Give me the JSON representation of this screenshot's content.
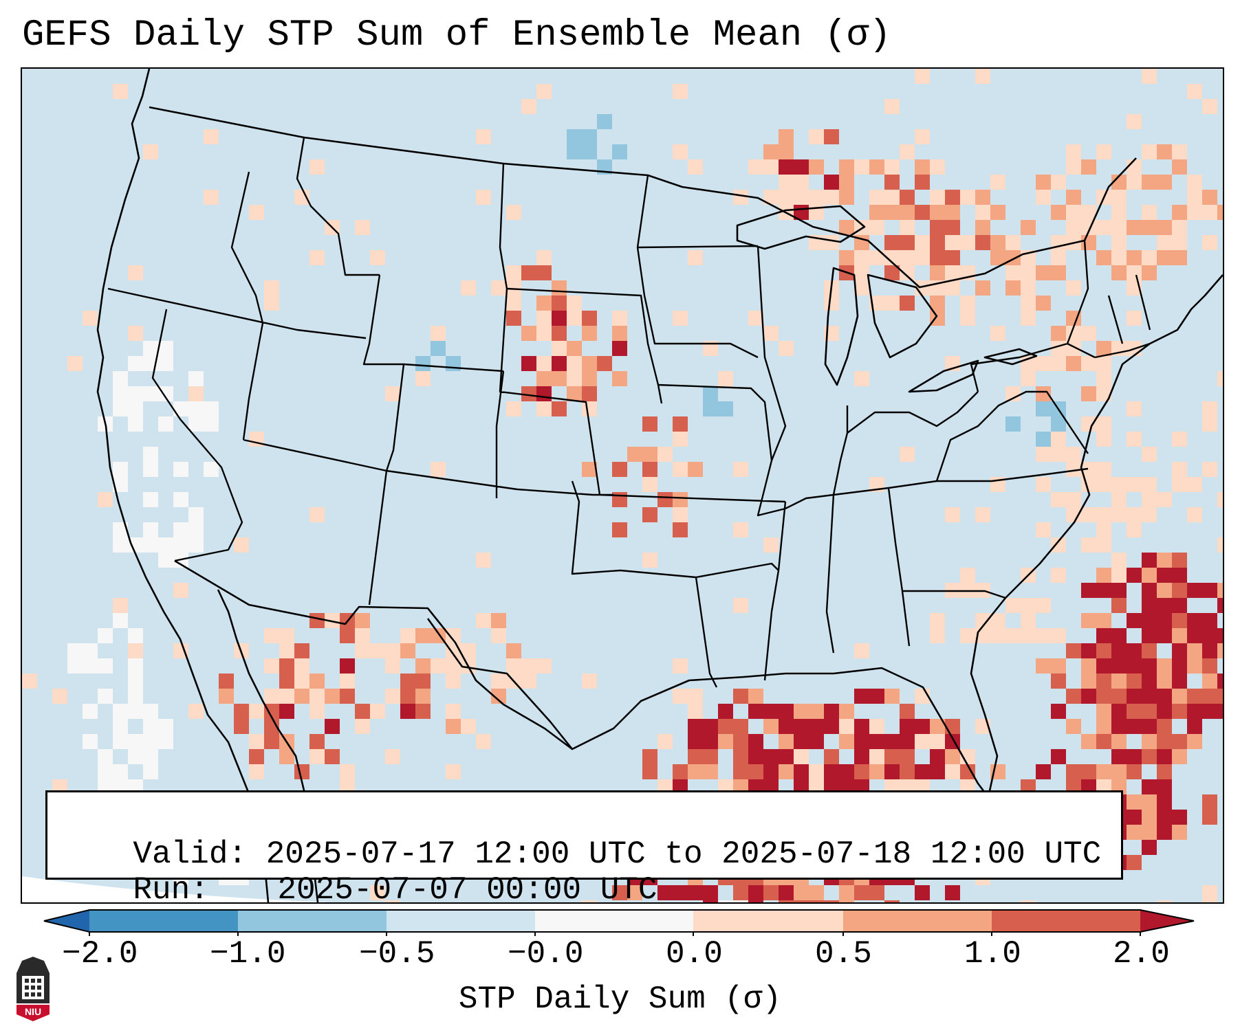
{
  "title": "GEFS Daily STP Sum of Ensemble Mean (σ)",
  "info": {
    "valid_label": "Valid:",
    "valid_value": "2025-07-17 12:00 UTC to 2025-07-18 12:00 UTC",
    "run_label": "Run:",
    "run_value": "2025-07-07 00:00 UTC"
  },
  "colorbar": {
    "label": "STP Daily Sum (σ)",
    "ticks": [
      "−2.0",
      "−1.0",
      "−0.5",
      "−0.0",
      "0.0",
      "0.5",
      "1.0",
      "2.0"
    ],
    "segments": [
      {
        "range": "< -2.0",
        "color": "#2166ac"
      },
      {
        "range": "-2.0 to -1.0",
        "color": "#4393c3"
      },
      {
        "range": "-1.0 to -0.5",
        "color": "#92c5de"
      },
      {
        "range": "-0.5 to -0.0",
        "color": "#d1e5f0"
      },
      {
        "range": "-0.0 to 0.0",
        "color": "#f7f7f7"
      },
      {
        "range": "0.0 to 0.5",
        "color": "#fddbc7"
      },
      {
        "range": "0.5 to 1.0",
        "color": "#f4a582"
      },
      {
        "range": "1.0 to 2.0",
        "color": "#d6604d"
      },
      {
        "range": "> 2.0",
        "color": "#b2182b"
      }
    ]
  },
  "map": {
    "region": "CONUS",
    "background_color": "#cfe3ef",
    "outside_domain_color": "#ffffff",
    "border_color": "#000000",
    "anomaly_regions": [
      {
        "area": "Northern Plains (South Dakota)",
        "level": "1.0 to 2.0"
      },
      {
        "area": "Ontario / Quebec",
        "level": "0.0 to 1.0"
      },
      {
        "area": "Northeast / New England",
        "level": "0.0 to 0.5"
      },
      {
        "area": "Arizona / New Mexico / northern Mexico",
        "level": "0.5 to 2.0"
      },
      {
        "area": "Gulf of Mexico",
        "level": "0.5 to 2.0"
      },
      {
        "area": "Florida / Bahamas / western Atlantic",
        "level": "1.0 to 2.0+"
      },
      {
        "area": "Eastern Pacific offshore",
        "level": "-0.0 to 0.0"
      },
      {
        "area": "Iowa / Pennsylvania",
        "level": "-1.0 to -0.5"
      }
    ]
  },
  "logo": {
    "text": "NIU",
    "color": "#c8102e"
  }
}
